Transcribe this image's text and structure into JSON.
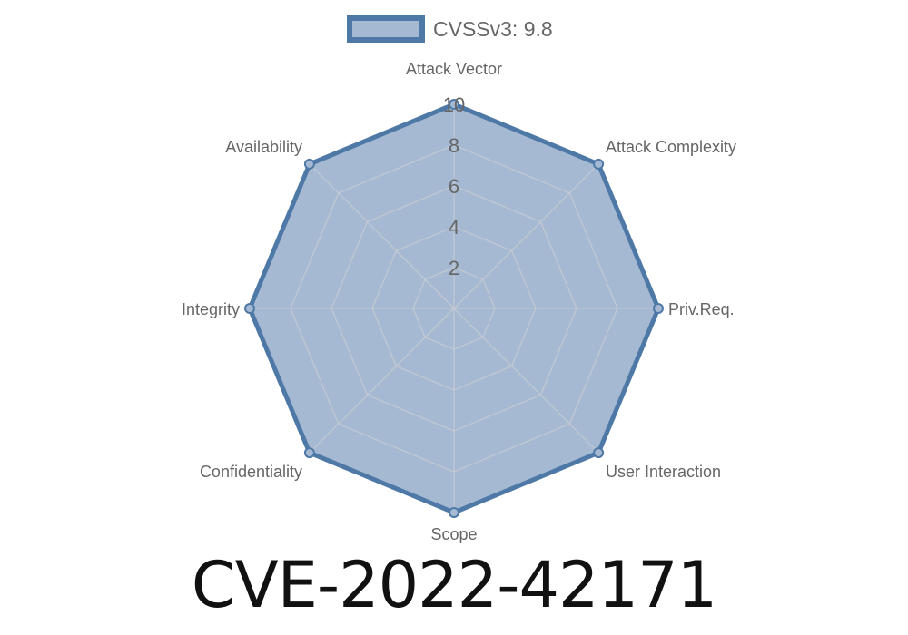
{
  "chart_data": {
    "type": "radar",
    "categories": [
      "Attack Vector",
      "Attack Complexity",
      "Priv.Req.",
      "User Interaction",
      "Scope",
      "Confidentiality",
      "Integrity",
      "Availability"
    ],
    "series": [
      {
        "name": "CVSSv3: 9.8",
        "values": [
          10,
          10,
          10,
          10,
          10,
          10,
          10,
          10
        ]
      }
    ],
    "rlim": [
      0,
      10
    ],
    "ticks": [
      "2",
      "4",
      "6",
      "8",
      "10"
    ],
    "tick_values": [
      2,
      4,
      6,
      8,
      10
    ],
    "grid": true,
    "legend": "top",
    "colors": {
      "stroke": "#4e79a7",
      "fill": "#a5b9d3",
      "grid": "#c8ccd2"
    }
  },
  "footer": {
    "title": "CVE-2022-42171"
  }
}
